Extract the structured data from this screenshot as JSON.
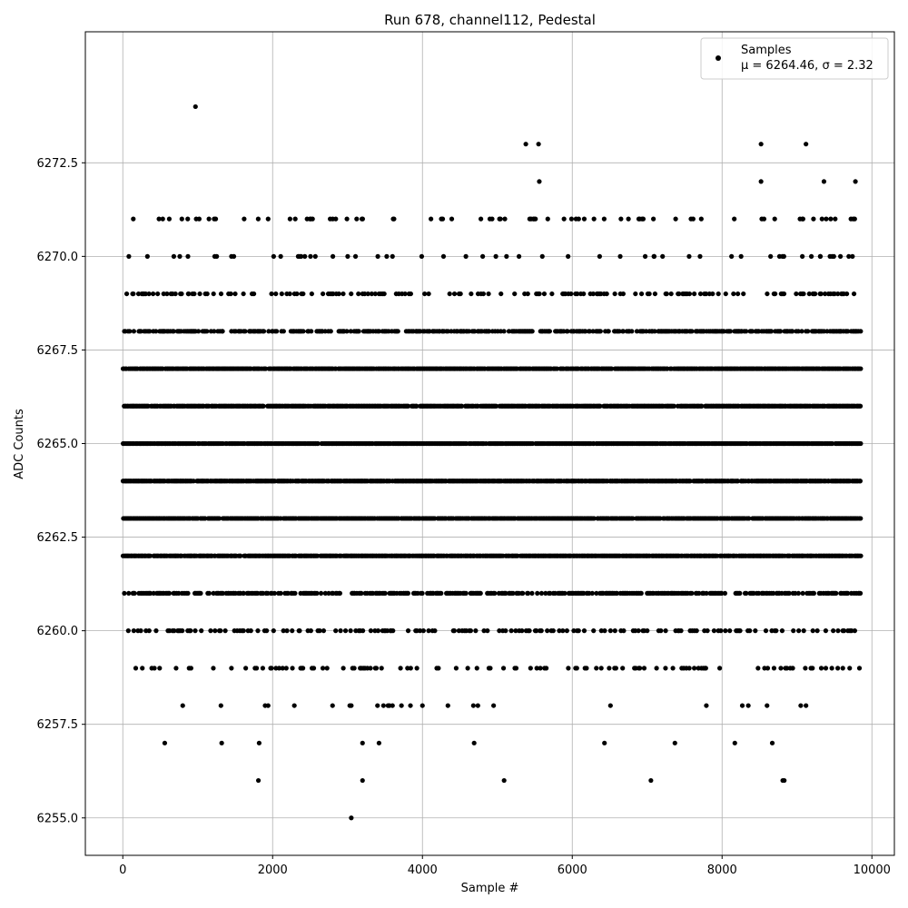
{
  "chart_data": {
    "type": "scatter",
    "title": "Run 678, channel112, Pedestal",
    "xlabel": "Sample #",
    "ylabel": "ADC Counts",
    "xlim": [
      -500,
      10300
    ],
    "ylim": [
      6254.0,
      6276.0
    ],
    "x_ticks": [
      0,
      2000,
      4000,
      6000,
      8000,
      10000
    ],
    "y_ticks": [
      6255.0,
      6257.5,
      6260.0,
      6262.5,
      6265.0,
      6267.5,
      6270.0,
      6272.5
    ],
    "x_tick_labels": [
      "0",
      "2000",
      "4000",
      "6000",
      "8000",
      "10000"
    ],
    "y_tick_labels": [
      "6255.0",
      "6257.5",
      "6260.0",
      "6262.5",
      "6265.0",
      "6267.5",
      "6270.0",
      "6272.5"
    ],
    "grid": true,
    "legend": {
      "position": "top-right",
      "label": "Samples",
      "stats": "μ = 6264.46, σ = 2.32"
    },
    "marker_color": "#000000",
    "series": [
      {
        "name": "Samples",
        "sample_count": 9850,
        "dense_levels": [
          6261,
          6262,
          6263,
          6264,
          6265,
          6266,
          6267,
          6268
        ],
        "sparse_levels": [
          6259,
          6260,
          6269,
          6270,
          6271
        ],
        "points": [
          [
            970,
            6274
          ],
          [
            5380,
            6273
          ],
          [
            5550,
            6273
          ],
          [
            8520,
            6273
          ],
          [
            9120,
            6273
          ],
          [
            5560,
            6272
          ],
          [
            8520,
            6272
          ],
          [
            9360,
            6272
          ],
          [
            9780,
            6272
          ],
          [
            140,
            6271
          ],
          [
            620,
            6271
          ],
          [
            980,
            6271
          ],
          [
            1020,
            6271
          ],
          [
            1220,
            6271
          ],
          [
            1240,
            6271
          ],
          [
            1620,
            6271
          ],
          [
            1940,
            6271
          ],
          [
            2460,
            6271
          ],
          [
            2500,
            6271
          ],
          [
            4270,
            6271
          ],
          [
            4780,
            6271
          ],
          [
            4900,
            6271
          ],
          [
            4930,
            6271
          ],
          [
            5450,
            6271
          ],
          [
            5490,
            6271
          ],
          [
            5890,
            6271
          ],
          [
            5990,
            6271
          ],
          [
            6050,
            6271
          ],
          [
            6160,
            6271
          ],
          [
            6290,
            6271
          ],
          [
            6650,
            6271
          ],
          [
            6750,
            6271
          ],
          [
            7380,
            6271
          ],
          [
            8530,
            6271
          ],
          [
            8560,
            6271
          ],
          [
            9040,
            6271
          ],
          [
            9220,
            6271
          ],
          [
            9390,
            6271
          ],
          [
            9450,
            6271
          ],
          [
            9510,
            6271
          ],
          [
            9720,
            6271
          ],
          [
            2380,
            6270
          ],
          [
            2430,
            6270
          ],
          [
            3600,
            6270
          ],
          [
            4580,
            6270
          ],
          [
            5600,
            6270
          ],
          [
            6640,
            6270
          ],
          [
            7090,
            6270
          ],
          [
            7560,
            6270
          ],
          [
            9310,
            6270
          ],
          [
            560,
            6257
          ],
          [
            1320,
            6257
          ],
          [
            1820,
            6257
          ],
          [
            3200,
            6257
          ],
          [
            3420,
            6257
          ],
          [
            4690,
            6257
          ],
          [
            6430,
            6257
          ],
          [
            7370,
            6257
          ],
          [
            8170,
            6257
          ],
          [
            8670,
            6257
          ],
          [
            1810,
            6256
          ],
          [
            3200,
            6256
          ],
          [
            5090,
            6256
          ],
          [
            7050,
            6256
          ],
          [
            8810,
            6256
          ],
          [
            8830,
            6256
          ],
          [
            3050,
            6255
          ]
        ],
        "band_258": [
          800,
          1310,
          1900,
          1940,
          2290,
          2800,
          3030,
          3050,
          3400,
          3480,
          3540,
          3560,
          3600,
          3720,
          3840,
          4000,
          4340,
          4680,
          4740,
          4950,
          6510,
          7790,
          8270,
          8350,
          8600,
          9050,
          9120
        ]
      }
    ]
  }
}
